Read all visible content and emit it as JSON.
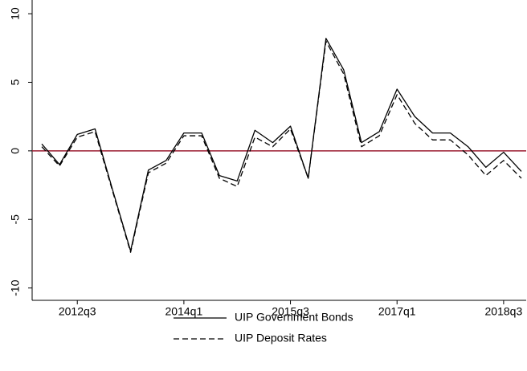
{
  "chart_data": {
    "type": "line",
    "categories": [
      null,
      null,
      "2012q3",
      null,
      null,
      null,
      null,
      null,
      "2014q1",
      null,
      null,
      null,
      null,
      null,
      "2015q3",
      null,
      null,
      null,
      null,
      null,
      "2017q1",
      null,
      null,
      null,
      null,
      null,
      "2018q3",
      null
    ],
    "series": [
      {
        "name": "UIP Government Bonds",
        "color": "#000000",
        "dash": false,
        "values": [
          0.5,
          -1.0,
          1.2,
          1.6,
          -2.9,
          -7.3,
          -1.4,
          -0.7,
          1.3,
          1.3,
          -1.8,
          -2.2,
          1.5,
          0.6,
          1.8,
          -2.0,
          8.2,
          5.9,
          0.6,
          1.4,
          4.5,
          2.5,
          1.3,
          1.3,
          0.3,
          -1.2,
          -0.1,
          -1.5
        ]
      },
      {
        "name": "UIP Deposit Rates",
        "color": "#000000",
        "dash": true,
        "values": [
          0.3,
          -1.1,
          1.0,
          1.4,
          -3.0,
          -7.4,
          -1.6,
          -0.9,
          1.1,
          1.1,
          -2.0,
          -2.6,
          1.0,
          0.3,
          1.6,
          -2.0,
          8.0,
          5.6,
          0.3,
          1.1,
          4.1,
          2.0,
          0.8,
          0.8,
          -0.3,
          -1.8,
          -0.7,
          -2.0
        ]
      }
    ],
    "ylim": [
      -10.9,
      11
    ],
    "yticks": [
      -10,
      -5,
      0,
      5,
      10
    ],
    "hline": {
      "value": 0,
      "color": "#9b1b30"
    },
    "grid": false,
    "legend": "bottom"
  }
}
